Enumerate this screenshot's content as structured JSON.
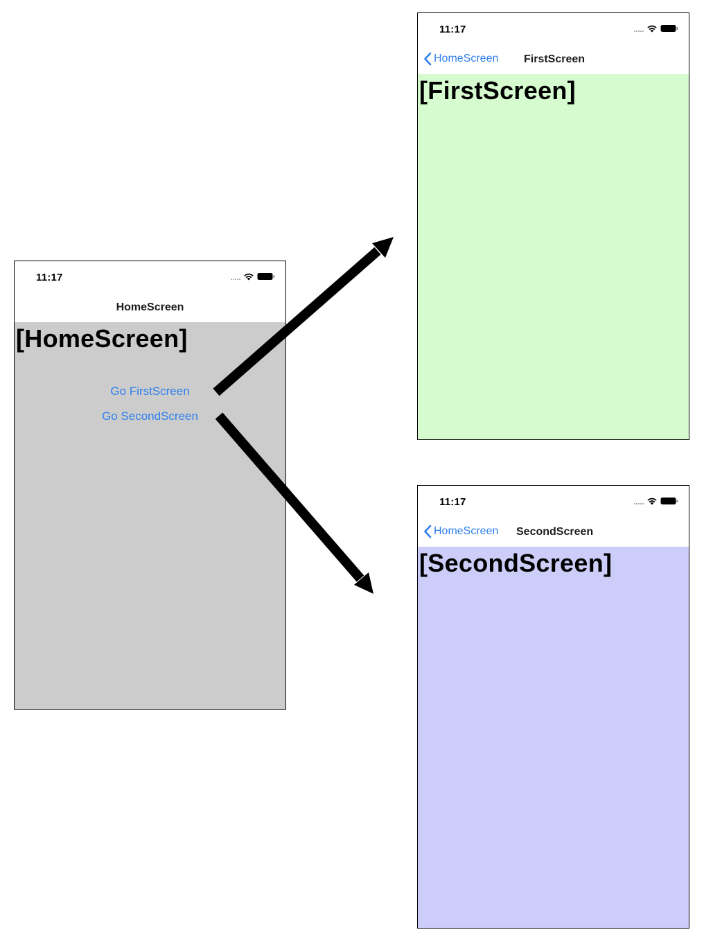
{
  "colors": {
    "home_bg": "#cccccc",
    "first_bg": "#d6fbcf",
    "second_bg": "#cccdf8",
    "link": "#2f80ed",
    "arrow": "#000000"
  },
  "home": {
    "status_time": "11:17",
    "nav_title": "HomeScreen",
    "heading": "[HomeScreen]",
    "buttons": {
      "first": "Go FirstScreen",
      "second": "Go SecondScreen"
    }
  },
  "first": {
    "status_time": "11:17",
    "back_label": "HomeScreen",
    "nav_title": "FirstScreen",
    "heading": "[FirstScreen]"
  },
  "second": {
    "status_time": "11:17",
    "back_label": "HomeScreen",
    "nav_title": "SecondScreen",
    "heading": "[SecondScreen]"
  },
  "icons": {
    "signal": "signal-dots-icon",
    "wifi": "wifi-icon",
    "battery": "battery-icon",
    "back": "chevron-left-icon",
    "arrow": "arrow-icon"
  }
}
